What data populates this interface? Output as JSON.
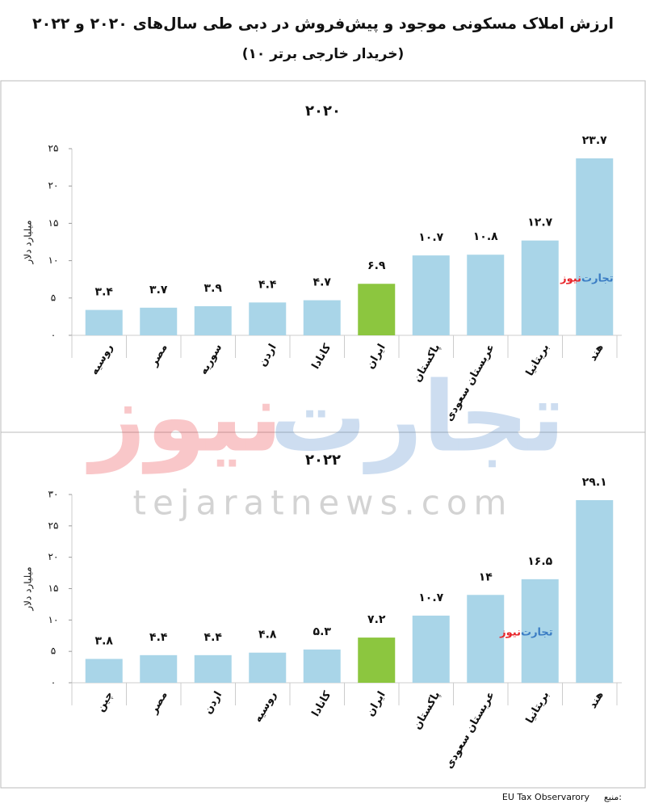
{
  "header": {
    "title": "ارزش املاک مسکونی موجود و پیش‌فروش در دبی طی سال‌های ۲۰۲۰ و ۲۰۲۲",
    "subtitle": "(۱۰ خریدار خارجی برتر)"
  },
  "watermark": {
    "brand_a": "تجارت",
    "brand_b": "نیوز",
    "url": "tejaratnews.com"
  },
  "footer": {
    "source_label": "منبع:",
    "source": "EU Tax Observarory"
  },
  "chart_data": [
    {
      "type": "bar",
      "title": "۲۰۲۰",
      "y_label": "میلیارد دلار",
      "categories": [
        "روسیه",
        "مصر",
        "سوریه",
        "اردن",
        "کانادا",
        "ایران",
        "پاکستان",
        "عربستان سعودی",
        "بریتانیا",
        "هند"
      ],
      "values": [
        3.4,
        3.7,
        3.9,
        4.4,
        4.7,
        6.9,
        10.7,
        10.8,
        12.7,
        23.7
      ],
      "value_labels": [
        "۳.۴",
        "۳.۷",
        "۳.۹",
        "۴.۴",
        "۴.۷",
        "۶.۹",
        "۱۰.۷",
        "۱۰.۸",
        "۱۲.۷",
        "۲۳.۷"
      ],
      "colors": [
        "#a9d5e8",
        "#a9d5e8",
        "#a9d5e8",
        "#a9d5e8",
        "#a9d5e8",
        "#8cc63f",
        "#a9d5e8",
        "#a9d5e8",
        "#a9d5e8",
        "#a9d5e8"
      ],
      "ylim": [
        0,
        25
      ],
      "yticks": [
        {
          "value": 0,
          "label": "۰"
        },
        {
          "value": 5,
          "label": "۵"
        },
        {
          "value": 10,
          "label": "۱۰"
        },
        {
          "value": 15,
          "label": "۱۵"
        },
        {
          "value": 20,
          "label": "۲۰"
        },
        {
          "value": 25,
          "label": "۲۵"
        }
      ]
    },
    {
      "type": "bar",
      "title": "۲۰۲۲",
      "y_label": "میلیارد دلار",
      "categories": [
        "چین",
        "مصر",
        "اردن",
        "روسیه",
        "کانادا",
        "ایران",
        "پاکستان",
        "عربستان سعودی",
        "بریتانیا",
        "هند"
      ],
      "values": [
        3.8,
        4.4,
        4.4,
        4.8,
        5.3,
        7.2,
        10.7,
        14,
        16.5,
        29.1
      ],
      "value_labels": [
        "۳.۸",
        "۴.۴",
        "۴.۴",
        "۴.۸",
        "۵.۳",
        "۷.۲",
        "۱۰.۷",
        "۱۴",
        "۱۶.۵",
        "۲۹.۱"
      ],
      "colors": [
        "#a9d5e8",
        "#a9d5e8",
        "#a9d5e8",
        "#a9d5e8",
        "#a9d5e8",
        "#8cc63f",
        "#a9d5e8",
        "#a9d5e8",
        "#a9d5e8",
        "#a9d5e8"
      ],
      "ylim": [
        0,
        30
      ],
      "yticks": [
        {
          "value": 0,
          "label": "۰"
        },
        {
          "value": 5,
          "label": "۵"
        },
        {
          "value": 10,
          "label": "۱۰"
        },
        {
          "value": 15,
          "label": "۱۵"
        },
        {
          "value": 20,
          "label": "۲۰"
        },
        {
          "value": 25,
          "label": "۲۵"
        },
        {
          "value": 30,
          "label": "۳۰"
        }
      ]
    }
  ]
}
